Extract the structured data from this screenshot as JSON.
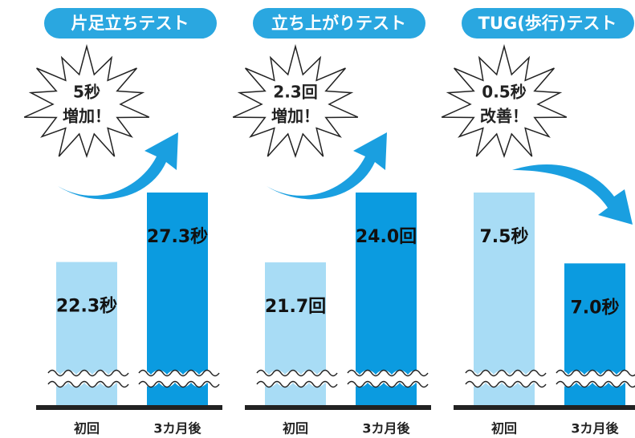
{
  "chart_data": [
    {
      "type": "bar",
      "title": "片足立ちテスト",
      "annotation": [
        "5秒",
        "増加！"
      ],
      "categories": [
        "初回",
        "3カ月後"
      ],
      "values": [
        22.3,
        27.3
      ],
      "value_labels": [
        "22.3秒",
        "27.3秒"
      ],
      "colors": [
        "#a8dcf5",
        "#0b9be0"
      ],
      "ylim": [
        12,
        27.3
      ],
      "arrow": "up"
    },
    {
      "type": "bar",
      "title": "立ち上がりテスト",
      "annotation": [
        "2.3回",
        "増加！"
      ],
      "categories": [
        "初回",
        "3カ月後"
      ],
      "values": [
        21.7,
        24.0
      ],
      "value_labels": [
        "21.7回",
        "24.0回"
      ],
      "colors": [
        "#a8dcf5",
        "#0b9be0"
      ],
      "ylim": [
        17,
        24
      ],
      "arrow": "up"
    },
    {
      "type": "bar",
      "title": "TUG(歩行)テスト",
      "annotation": [
        "0.5秒",
        "改善！"
      ],
      "categories": [
        "初回",
        "3カ月後"
      ],
      "values": [
        7.5,
        7.0
      ],
      "value_labels": [
        "7.5秒",
        "7.0秒"
      ],
      "colors": [
        "#a8dcf5",
        "#0b9be0"
      ],
      "ylim": [
        6,
        7.5
      ],
      "arrow": "down"
    }
  ]
}
